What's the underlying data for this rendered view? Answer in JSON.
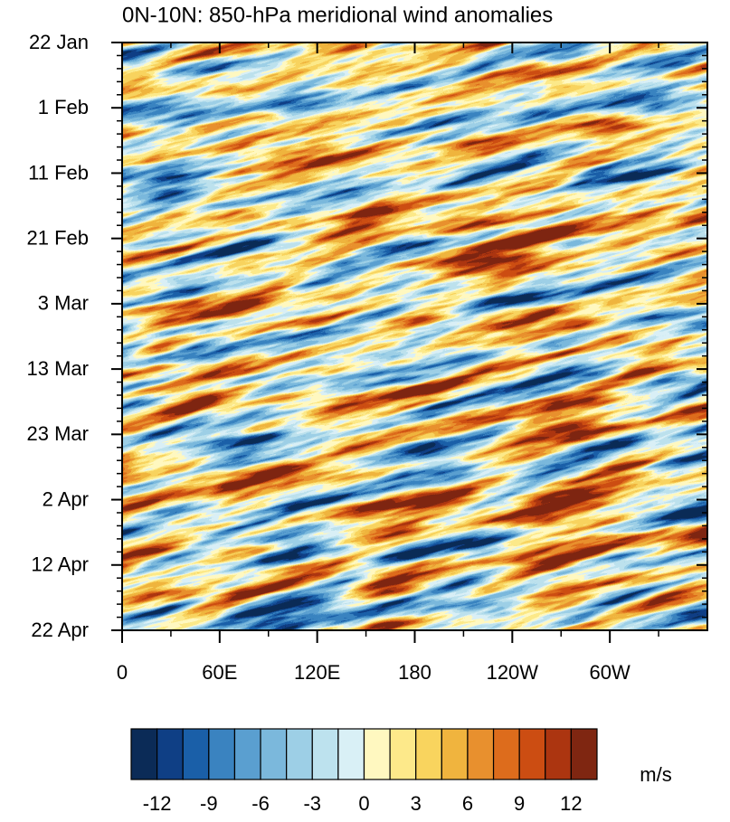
{
  "chart_data": {
    "type": "contour",
    "title": "0N-10N: 850-hPa meridional wind anomalies",
    "xlim": [
      0,
      360
    ],
    "xticks": [
      0,
      {
        "value": 60,
        "label": "60E"
      },
      {
        "value": 120,
        "label": "120E"
      },
      180,
      {
        "value": 240,
        "label": "120W"
      },
      {
        "value": 300,
        "label": "60W"
      }
    ],
    "xminorticks": [
      30,
      90,
      150,
      210,
      270,
      330
    ],
    "ylim": [
      0,
      90
    ],
    "yticks": [
      {
        "value": 0,
        "label": "22 Jan"
      },
      {
        "value": 10,
        "label": "1 Feb"
      },
      {
        "value": 20,
        "label": "11 Feb"
      },
      {
        "value": 30,
        "label": "21 Feb"
      },
      {
        "value": 40,
        "label": "3 Mar"
      },
      {
        "value": 50,
        "label": "13 Mar"
      },
      {
        "value": 60,
        "label": "23 Mar"
      },
      {
        "value": 70,
        "label": "2 Apr"
      },
      {
        "value": 80,
        "label": "12 Apr"
      },
      {
        "value": 90,
        "label": "22 Apr"
      }
    ],
    "yminorticks": [
      2,
      4,
      6,
      8,
      12,
      14,
      16,
      18,
      22,
      24,
      26,
      28,
      32,
      34,
      36,
      38,
      42,
      44,
      46,
      48,
      52,
      54,
      56,
      58,
      62,
      64,
      66,
      68,
      72,
      74,
      76,
      78,
      82,
      84,
      86,
      88
    ],
    "colorbar": {
      "label": "m/s",
      "clim": [
        -13.5,
        13.5
      ],
      "levels": [
        -12,
        -10.5,
        -9,
        -7.5,
        -6,
        -4.5,
        -3,
        -1.5,
        0,
        1.5,
        3,
        4.5,
        6,
        7.5,
        9,
        10.5,
        12
      ],
      "colors": [
        "#0b2b57",
        "#0f3f85",
        "#1a5fa8",
        "#3a83c0",
        "#5a9fd0",
        "#7bb8dc",
        "#9dcfe6",
        "#bde2ee",
        "#d9f0f6",
        "#fff8c0",
        "#fde98a",
        "#f9d45e",
        "#f0b43e",
        "#e8902e",
        "#dd6c1c",
        "#cc4d12",
        "#ac3510",
        "#7f2611"
      ],
      "ticks": [
        -12,
        -9,
        -6,
        -3,
        0,
        3,
        6,
        9,
        12
      ]
    }
  }
}
